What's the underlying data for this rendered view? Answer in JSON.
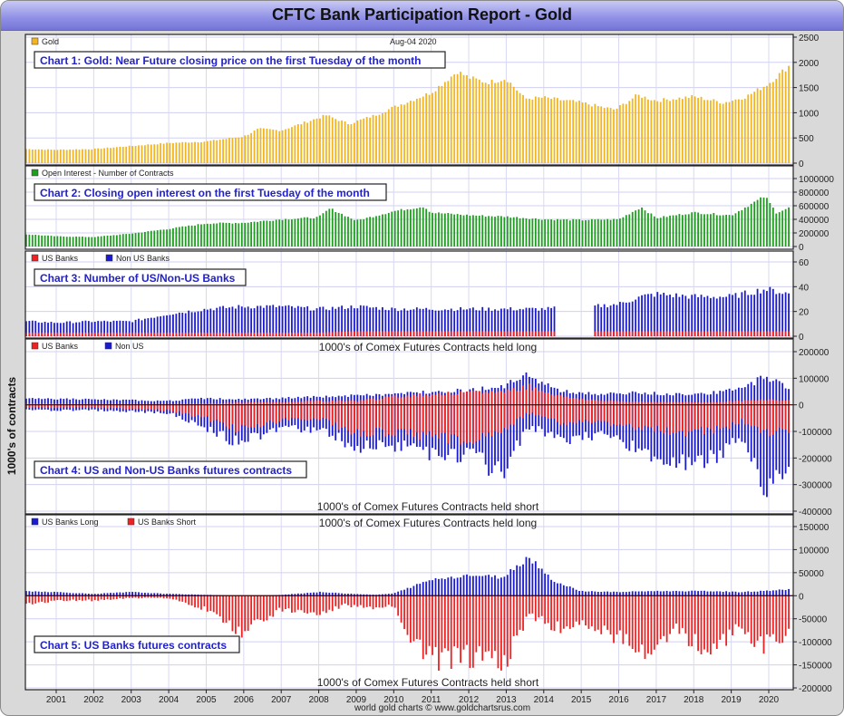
{
  "title": "CFTC Bank Participation Report - Gold",
  "date_label": "Aug-04  2020",
  "y_axis_label": "1000's of contracts",
  "footer": "world gold charts © www.goldchartsrus.com",
  "colors": {
    "gold": "#f2b520",
    "green": "#1e9e1e",
    "red": "#ee2222",
    "blue": "#1a1ad0",
    "box_text": "#2222cc"
  },
  "chart_data": [
    {
      "id": "chart1",
      "type": "bar",
      "caption": "Chart 1: Gold: Near Future closing price on the first Tuesday of the month",
      "legend": [
        {
          "label": "Gold",
          "color": "#f2b520"
        }
      ],
      "ylim": [
        0,
        2500
      ],
      "yticks": [
        "2500",
        "2000",
        "1500",
        "1000",
        "500",
        "0"
      ],
      "ytick_values": [
        2500,
        2000,
        1500,
        1000,
        500,
        0
      ],
      "x_start": 2000.2,
      "x_end": 2020.6,
      "anchors_x": [
        2000.2,
        2001,
        2002,
        2003,
        2004,
        2005,
        2006,
        2006.4,
        2007,
        2008,
        2008.2,
        2008.8,
        2009.5,
        2010,
        2011,
        2011.7,
        2012,
        2012.5,
        2013,
        2013.5,
        2014,
        2015,
        2015.9,
        2016.5,
        2017,
        2018,
        2018.8,
        2019.4,
        2020,
        2020.6
      ],
      "series": [
        {
          "name": "Gold",
          "values": [
            280,
            265,
            280,
            340,
            400,
            430,
            530,
            680,
            650,
            900,
            950,
            780,
            950,
            1110,
            1400,
            1820,
            1700,
            1600,
            1680,
            1280,
            1300,
            1200,
            1060,
            1350,
            1240,
            1320,
            1200,
            1320,
            1580,
            1970
          ]
        }
      ]
    },
    {
      "id": "chart2",
      "type": "bar",
      "caption": "Chart 2: Closing open interest on the first Tuesday of the month",
      "legend": [
        {
          "label": "Open Interest - Number of Contracts",
          "color": "#1e9e1e"
        }
      ],
      "ylim": [
        0,
        1000000
      ],
      "yticks": [
        "1000000",
        "800000",
        "600000",
        "400000",
        "200000",
        "0"
      ],
      "ytick_values": [
        1000000,
        800000,
        600000,
        400000,
        200000,
        0
      ],
      "x_start": 2000.2,
      "x_end": 2020.6,
      "anchors_x": [
        2000.2,
        2001,
        2002,
        2003,
        2004,
        2005,
        2006,
        2007,
        2008,
        2008.3,
        2009,
        2010,
        2010.8,
        2011,
        2012,
        2013,
        2014,
        2015,
        2016,
        2016.6,
        2017,
        2018,
        2019,
        2019.9,
        2020.2,
        2020.6
      ],
      "series": [
        {
          "name": "Open Interest",
          "values": [
            180000,
            150000,
            140000,
            190000,
            260000,
            340000,
            350000,
            400000,
            430000,
            560000,
            380000,
            520000,
            590000,
            500000,
            460000,
            440000,
            400000,
            390000,
            400000,
            580000,
            420000,
            500000,
            460000,
            740000,
            500000,
            580000
          ]
        }
      ]
    },
    {
      "id": "chart3",
      "type": "bar",
      "caption": "Chart 3: Number of US/Non-US Banks",
      "legend": [
        {
          "label": "US Banks",
          "color": "#ee2222"
        },
        {
          "label": "Non US Banks",
          "color": "#1a1ad0"
        }
      ],
      "ylim": [
        0,
        60
      ],
      "yticks": [
        "60",
        "40",
        "20",
        "0"
      ],
      "ytick_values": [
        60,
        40,
        20,
        0
      ],
      "x_start": 2000.2,
      "x_end": 2020.6,
      "gap": [
        2014.3,
        2015.3
      ],
      "anchors_x": [
        2000.2,
        2001,
        2002,
        2003,
        2004,
        2005,
        2006,
        2007,
        2008,
        2009,
        2010,
        2011,
        2012,
        2013,
        2014,
        2015.3,
        2016,
        2016.6,
        2017,
        2018,
        2019,
        2019.9,
        2020.6
      ],
      "series": [
        {
          "name": "US Banks",
          "values": [
            3,
            3,
            3,
            3,
            3,
            3,
            3,
            3,
            3,
            4,
            4,
            4,
            4,
            4,
            4,
            4,
            4,
            4,
            4,
            4,
            4,
            4,
            4
          ]
        },
        {
          "name": "Non US Banks",
          "values": [
            12,
            11,
            12,
            12,
            18,
            22,
            24,
            24,
            22,
            24,
            22,
            22,
            22,
            22,
            22,
            24,
            26,
            32,
            34,
            32,
            32,
            38,
            34
          ]
        }
      ]
    },
    {
      "id": "chart4",
      "type": "bar",
      "caption": "Chart 4: US and Non-US Banks futures contracts",
      "legend": [
        {
          "label": "US Banks",
          "color": "#ee2222"
        },
        {
          "label": "Non US",
          "color": "#1a1ad0"
        }
      ],
      "top_label": "1000's of Comex Futures Contracts held long",
      "bottom_label": "1000's of Comex Futures Contracts held short",
      "ylim": [
        -400000,
        200000
      ],
      "yticks": [
        "200000",
        "100000",
        "0",
        "-100000",
        "-200000",
        "-300000",
        "-400000"
      ],
      "ytick_values": [
        200000,
        100000,
        0,
        -100000,
        -200000,
        -300000,
        -400000
      ],
      "x_start": 2000.2,
      "x_end": 2020.6,
      "anchors_x": [
        2000.2,
        2002,
        2004,
        2005,
        2005.8,
        2007,
        2008,
        2009,
        2010,
        2011,
        2012,
        2012.9,
        2013.6,
        2014.5,
        2015.5,
        2016.5,
        2017.5,
        2018.5,
        2019.3,
        2019.9,
        2020.6
      ],
      "series": [
        {
          "name": "US Banks long",
          "values": [
            5000,
            3000,
            2000,
            5000,
            8000,
            10000,
            15000,
            15000,
            30000,
            40000,
            45000,
            50000,
            70000,
            30000,
            15000,
            12000,
            10000,
            10000,
            15000,
            20000,
            15000
          ]
        },
        {
          "name": "US Banks short",
          "values": [
            -10000,
            -10000,
            -20000,
            -50000,
            -90000,
            -60000,
            -50000,
            -110000,
            -100000,
            -120000,
            -130000,
            -100000,
            -30000,
            -70000,
            -60000,
            -90000,
            -100000,
            -100000,
            -60000,
            -110000,
            -90000
          ]
        },
        {
          "name": "Non US long",
          "values": [
            25000,
            20000,
            15000,
            25000,
            20000,
            25000,
            30000,
            35000,
            40000,
            50000,
            55000,
            70000,
            110000,
            50000,
            40000,
            45000,
            40000,
            45000,
            60000,
            110000,
            60000
          ]
        },
        {
          "name": "Non US short",
          "values": [
            -20000,
            -20000,
            -30000,
            -90000,
            -140000,
            -90000,
            -90000,
            -160000,
            -150000,
            -180000,
            -190000,
            -260000,
            -80000,
            -130000,
            -110000,
            -160000,
            -230000,
            -200000,
            -120000,
            -320000,
            -200000
          ]
        }
      ]
    },
    {
      "id": "chart5",
      "type": "bar",
      "caption": "Chart 5: US Banks futures contracts",
      "legend": [
        {
          "label": "US Banks Long",
          "color": "#1a1ad0"
        },
        {
          "label": "US Banks Short",
          "color": "#ee2222"
        }
      ],
      "top_label": "1000's of Comex Futures Contracts held long",
      "bottom_label": "1000's of Comex Futures Contracts held short",
      "ylim": [
        -200000,
        150000
      ],
      "yticks": [
        "150000",
        "100000",
        "50000",
        "0",
        "-50000",
        "-100000",
        "-150000",
        "-200000"
      ],
      "ytick_values": [
        150000,
        100000,
        50000,
        0,
        -50000,
        -100000,
        -150000,
        -200000
      ],
      "x_start": 2000.2,
      "x_end": 2020.6,
      "anchors_x": [
        2000.2,
        2001,
        2002,
        2003,
        2004,
        2005,
        2005.9,
        2006.5,
        2007,
        2008,
        2008.7,
        2009.5,
        2010,
        2010.5,
        2011,
        2012,
        2012.9,
        2013.6,
        2014.3,
        2015,
        2016,
        2016.8,
        2017.5,
        2018.5,
        2019.2,
        2019.8,
        2020.6
      ],
      "series": [
        {
          "name": "US Banks Long",
          "values": [
            10000,
            8000,
            4000,
            8000,
            4000,
            2000,
            0,
            0,
            2000,
            8000,
            5000,
            2000,
            5000,
            20000,
            35000,
            45000,
            40000,
            85000,
            30000,
            10000,
            8000,
            10000,
            10000,
            10000,
            8000,
            10000,
            14000
          ]
        },
        {
          "name": "US Banks Short",
          "values": [
            -20000,
            -10000,
            -10000,
            -5000,
            -5000,
            -30000,
            -80000,
            -50000,
            -30000,
            -40000,
            -20000,
            -30000,
            -20000,
            -100000,
            -140000,
            -130000,
            -150000,
            -40000,
            -70000,
            -60000,
            -90000,
            -120000,
            -70000,
            -130000,
            -60000,
            -110000,
            -80000
          ]
        }
      ]
    }
  ],
  "x_axis": {
    "ticks": [
      "2001",
      "2002",
      "2003",
      "2004",
      "2005",
      "2006",
      "2007",
      "2008",
      "2009",
      "2010",
      "2011",
      "2012",
      "2013",
      "2014",
      "2015",
      "2016",
      "2017",
      "2018",
      "2019",
      "2020"
    ],
    "tick_values": [
      2001,
      2002,
      2003,
      2004,
      2005,
      2006,
      2007,
      2008,
      2009,
      2010,
      2011,
      2012,
      2013,
      2014,
      2015,
      2016,
      2017,
      2018,
      2019,
      2020
    ]
  }
}
